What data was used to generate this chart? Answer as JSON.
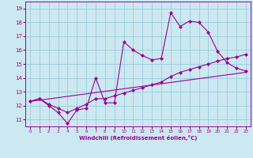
{
  "xlabel": "Windchill (Refroidissement éolien,°C)",
  "bg_color": "#cce8f0",
  "grid_color": "#99ccdd",
  "line_color": "#990099",
  "xlim": [
    -0.5,
    23.5
  ],
  "ylim": [
    10.5,
    19.5
  ],
  "xticks": [
    0,
    1,
    2,
    3,
    4,
    5,
    6,
    7,
    8,
    9,
    10,
    11,
    12,
    13,
    14,
    15,
    16,
    17,
    18,
    19,
    20,
    21,
    22,
    23
  ],
  "yticks": [
    11,
    12,
    13,
    14,
    15,
    16,
    17,
    18,
    19
  ],
  "line1_x": [
    0,
    1,
    2,
    3,
    4,
    5,
    6,
    7,
    8,
    9,
    10,
    11,
    12,
    13,
    14,
    15,
    16,
    17,
    18,
    19,
    20,
    21,
    22,
    23
  ],
  "line1_y": [
    12.3,
    12.5,
    12.0,
    11.5,
    10.7,
    11.7,
    11.8,
    14.0,
    12.2,
    12.2,
    16.6,
    16.0,
    15.6,
    15.3,
    15.4,
    18.7,
    17.7,
    18.1,
    18.0,
    17.3,
    15.9,
    15.1,
    14.7,
    14.5
  ],
  "line2_x": [
    0,
    1,
    2,
    3,
    4,
    5,
    6,
    7,
    8,
    9,
    10,
    11,
    12,
    13,
    14,
    15,
    16,
    17,
    18,
    19,
    20,
    21,
    22,
    23
  ],
  "line2_y": [
    12.3,
    12.5,
    12.1,
    11.8,
    11.5,
    11.8,
    12.1,
    12.5,
    12.5,
    12.7,
    12.9,
    13.1,
    13.3,
    13.5,
    13.7,
    14.1,
    14.4,
    14.6,
    14.8,
    15.0,
    15.2,
    15.4,
    15.5,
    15.7
  ],
  "line3_x": [
    0,
    23
  ],
  "line3_y": [
    12.3,
    14.4
  ],
  "marker": "D",
  "markersize": 2.0,
  "linewidth": 0.8
}
